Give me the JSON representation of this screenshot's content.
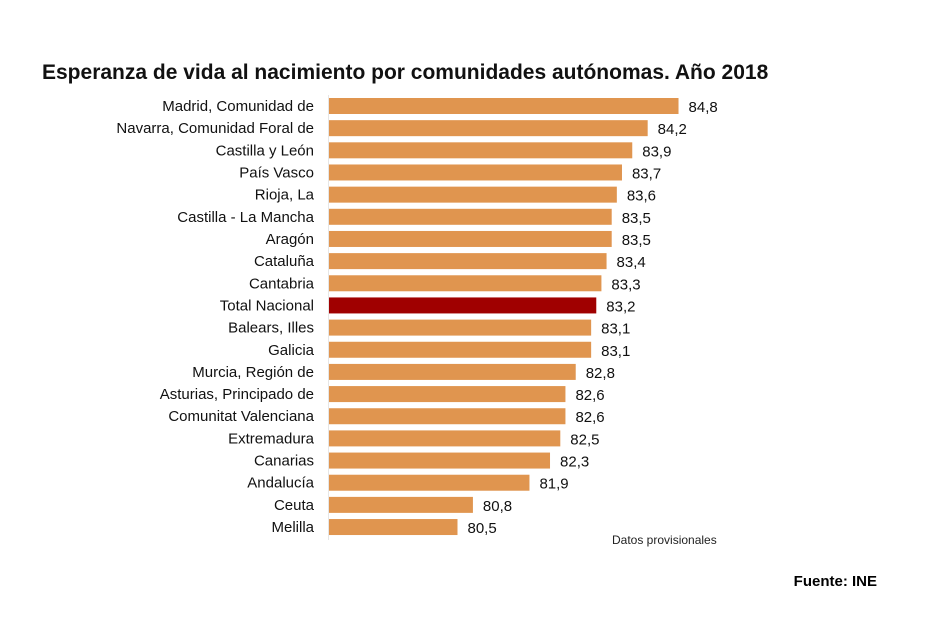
{
  "chart_data": {
    "type": "bar",
    "orientation": "horizontal",
    "title": "Esperanza de vida al nacimiento por comunidades autónomas. Año 2018",
    "categories": [
      "Madrid, Comunidad de",
      "Navarra, Comunidad Foral de",
      "Castilla y León",
      "País Vasco",
      "Rioja, La",
      "Castilla - La Mancha",
      "Aragón",
      "Cataluña",
      "Cantabria",
      "Total Nacional",
      "Balears, Illes",
      "Galicia",
      "Murcia, Región de",
      "Asturias, Principado de",
      "Comunitat Valenciana",
      "Extremadura",
      "Canarias",
      "Andalucía",
      "Ceuta",
      "Melilla"
    ],
    "values": [
      84.8,
      84.2,
      83.9,
      83.7,
      83.6,
      83.5,
      83.5,
      83.4,
      83.3,
      83.2,
      83.1,
      83.1,
      82.8,
      82.6,
      82.6,
      82.5,
      82.3,
      81.9,
      80.8,
      80.5
    ],
    "value_labels": [
      "84,8",
      "84,2",
      "83,9",
      "83,7",
      "83,6",
      "83,5",
      "83,5",
      "83,4",
      "83,3",
      "83,2",
      "83,1",
      "83,1",
      "82,8",
      "82,6",
      "82,6",
      "82,5",
      "82,3",
      "81,9",
      "80,8",
      "80,5"
    ],
    "xlim": [
      78,
      85
    ],
    "grid": false,
    "legend": "none",
    "colors": {
      "default": "#E0954F",
      "highlight": "#A00000"
    },
    "highlight_category": "Total Nacional",
    "annotation": "Datos provisionales"
  },
  "source": "Fuente: INE"
}
